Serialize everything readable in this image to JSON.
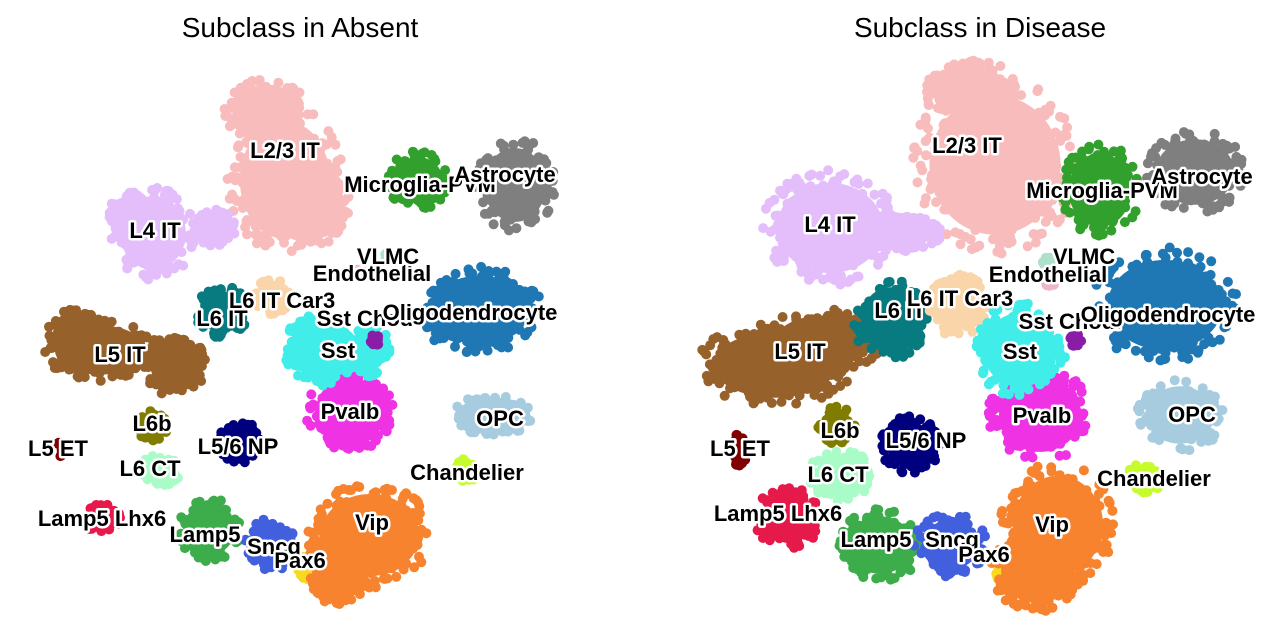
{
  "colors": {
    "L2/3 IT": "#f8bcbc",
    "L4 IT": "#e4bdfb",
    "L5 IT": "#97612b",
    "L6 IT": "#087b80",
    "L6 IT Car3": "#fbd5aa",
    "L5 ET": "#800000",
    "L6b": "#7f7c00",
    "L5/6 NP": "#00007e",
    "L6 CT": "#a9fcc7",
    "Lamp5 Lhx6": "#e51a4b",
    "Lamp5": "#3dac4a",
    "Sncg": "#4260dd",
    "Pax6": "#f7d91f",
    "Vip": "#f7832f",
    "Pvalb": "#ef32e4",
    "Sst": "#41ede9",
    "Sst Chodl": "#8a1da8",
    "Chandelier": "#c6fb2c",
    "OPC": "#a7cce0",
    "Oligodendrocyte": "#1f77b4",
    "Endothelial": "#f0b5c9",
    "VLMC": "#aee0cc",
    "Microglia-PVM": "#32a02c",
    "Astrocyte": "#7f7f7f"
  },
  "chart_data": [
    {
      "type": "scatter",
      "title": "Subclass in Absent",
      "group": "Absent",
      "clusters": [
        {
          "name": "L2/3 IT",
          "label": "L2/3 IT",
          "x": 0.62,
          "y": 0.82
        },
        {
          "name": "L4 IT",
          "label": "L4 IT",
          "x": 0.3,
          "y": 0.65
        },
        {
          "name": "L5 IT",
          "label": "L5 IT",
          "x": 0.2,
          "y": 0.43
        },
        {
          "name": "L6 IT",
          "label": "L6 IT",
          "x": 0.48,
          "y": 0.5
        },
        {
          "name": "L6 IT Car3",
          "label": "L6 IT Car3",
          "x": 0.56,
          "y": 0.52
        },
        {
          "name": "L5 ET",
          "label": "L5 ET",
          "x": 0.1,
          "y": 0.3
        },
        {
          "name": "L6b",
          "label": "L6b",
          "x": 0.32,
          "y": 0.33
        },
        {
          "name": "L5/6 NP",
          "label": "L5/6 NP",
          "x": 0.46,
          "y": 0.31
        },
        {
          "name": "L6 CT",
          "label": "L6 CT",
          "x": 0.33,
          "y": 0.26
        },
        {
          "name": "Lamp5 Lhx6",
          "label": "Lamp5 Lhx6",
          "x": 0.2,
          "y": 0.17
        },
        {
          "name": "Lamp5",
          "label": "Lamp5",
          "x": 0.43,
          "y": 0.16
        },
        {
          "name": "Sncg",
          "label": "Sncg",
          "x": 0.57,
          "y": 0.13
        },
        {
          "name": "Pax6",
          "label": "Pax6",
          "x": 0.62,
          "y": 0.09
        },
        {
          "name": "Vip",
          "label": "Vip",
          "x": 0.79,
          "y": 0.17
        },
        {
          "name": "Pvalb",
          "label": "Pvalb",
          "x": 0.76,
          "y": 0.38
        },
        {
          "name": "Sst",
          "label": "Sst",
          "x": 0.72,
          "y": 0.45
        },
        {
          "name": "Sst Chodl",
          "label": "Sst Chodl",
          "x": 0.75,
          "y": 0.49
        },
        {
          "name": "Chandelier",
          "label": "Chandelier",
          "x": 0.97,
          "y": 0.26
        },
        {
          "name": "OPC",
          "label": "OPC",
          "x": 1.03,
          "y": 0.35
        },
        {
          "name": "Oligodendrocyte",
          "label": "Oligodendrocyte",
          "x": 0.97,
          "y": 0.5
        },
        {
          "name": "Endothelial",
          "label": "Endothelial",
          "x": 0.7,
          "y": 0.57
        },
        {
          "name": "VLMC",
          "label": "VLMC",
          "x": 0.82,
          "y": 0.6
        },
        {
          "name": "Microglia-PVM",
          "label": "Microglia-PVM",
          "x": 0.82,
          "y": 0.78
        },
        {
          "name": "Astrocyte",
          "label": "Astrocyte",
          "x": 1.04,
          "y": 0.77
        }
      ]
    },
    {
      "type": "scatter",
      "title": "Subclass in Disease",
      "group": "Disease",
      "clusters": [
        {
          "name": "L2/3 IT",
          "label": "L2/3 IT",
          "x": 0.62,
          "y": 0.82
        },
        {
          "name": "L4 IT",
          "label": "L4 IT",
          "x": 0.3,
          "y": 0.65
        },
        {
          "name": "L5 IT",
          "label": "L5 IT",
          "x": 0.2,
          "y": 0.43
        },
        {
          "name": "L6 IT",
          "label": "L6 IT",
          "x": 0.48,
          "y": 0.5
        },
        {
          "name": "L6 IT Car3",
          "label": "L6 IT Car3",
          "x": 0.56,
          "y": 0.52
        },
        {
          "name": "L5 ET",
          "label": "L5 ET",
          "x": 0.1,
          "y": 0.3
        },
        {
          "name": "L6b",
          "label": "L6b",
          "x": 0.32,
          "y": 0.33
        },
        {
          "name": "L5/6 NP",
          "label": "L5/6 NP",
          "x": 0.46,
          "y": 0.31
        },
        {
          "name": "L6 CT",
          "label": "L6 CT",
          "x": 0.33,
          "y": 0.26
        },
        {
          "name": "Lamp5 Lhx6",
          "label": "Lamp5 Lhx6",
          "x": 0.2,
          "y": 0.17
        },
        {
          "name": "Lamp5",
          "label": "Lamp5",
          "x": 0.43,
          "y": 0.16
        },
        {
          "name": "Sncg",
          "label": "Sncg",
          "x": 0.57,
          "y": 0.13
        },
        {
          "name": "Pax6",
          "label": "Pax6",
          "x": 0.62,
          "y": 0.09
        },
        {
          "name": "Vip",
          "label": "Vip",
          "x": 0.79,
          "y": 0.17
        },
        {
          "name": "Pvalb",
          "label": "Pvalb",
          "x": 0.76,
          "y": 0.38
        },
        {
          "name": "Sst",
          "label": "Sst",
          "x": 0.72,
          "y": 0.45
        },
        {
          "name": "Sst Chodl",
          "label": "Sst Chodl",
          "x": 0.75,
          "y": 0.49
        },
        {
          "name": "Chandelier",
          "label": "Chandelier",
          "x": 0.97,
          "y": 0.26
        },
        {
          "name": "OPC",
          "label": "OPC",
          "x": 1.03,
          "y": 0.35
        },
        {
          "name": "Oligodendrocyte",
          "label": "Oligodendrocyte",
          "x": 0.97,
          "y": 0.5
        },
        {
          "name": "Endothelial",
          "label": "Endothelial",
          "x": 0.7,
          "y": 0.57
        },
        {
          "name": "VLMC",
          "label": "VLMC",
          "x": 0.82,
          "y": 0.6
        },
        {
          "name": "Microglia-PVM",
          "label": "Microglia-PVM",
          "x": 0.82,
          "y": 0.78
        },
        {
          "name": "Astrocyte",
          "label": "Astrocyte",
          "x": 1.04,
          "y": 0.77
        }
      ]
    }
  ]
}
